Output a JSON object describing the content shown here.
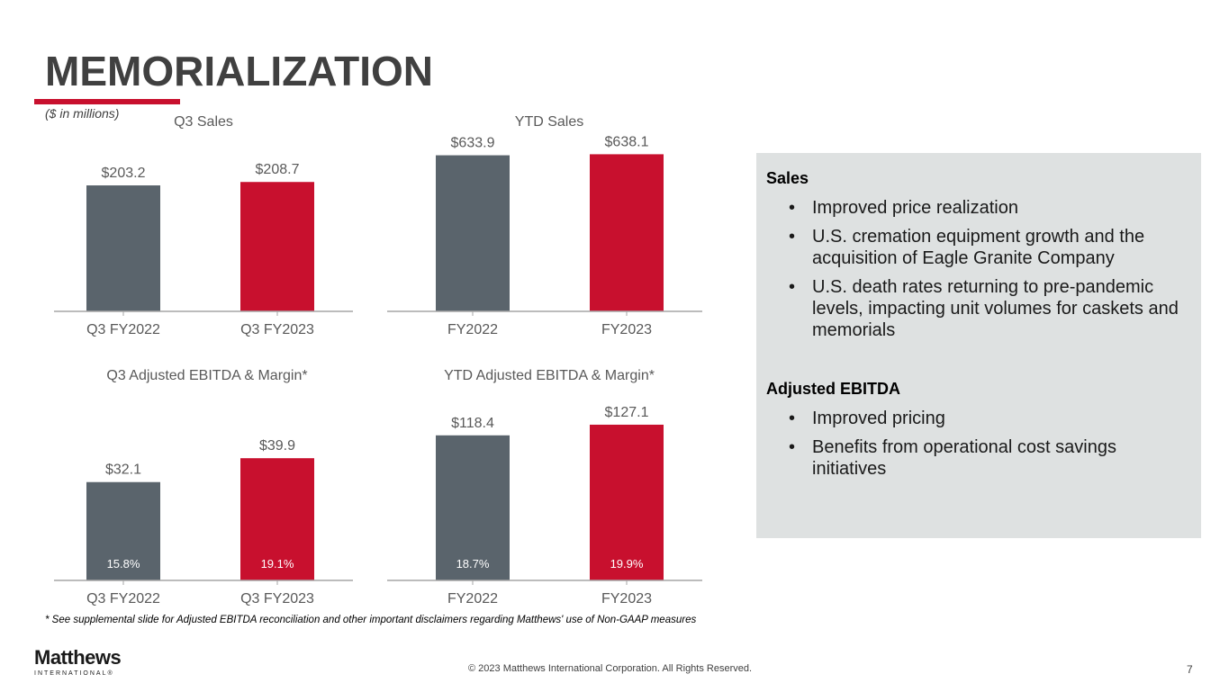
{
  "slide": {
    "title": "MEMORIALIZATION",
    "units": "($ in millions)",
    "accent_color": "#c8102e",
    "prior_color": "#5a646c",
    "footnote": "* See supplemental slide for Adjusted EBITDA reconciliation and other important disclaimers regarding Matthews' use of Non-GAAP measures",
    "logo": {
      "name": "Matthews",
      "sub": "INTERNATIONAL®"
    },
    "copyright": "© 2023 Matthews International Corporation. All Rights Reserved.",
    "page_number": "7"
  },
  "panel": {
    "sections": [
      {
        "heading": "Sales",
        "bullets": [
          "Improved price realization",
          "U.S. cremation equipment growth and the acquisition of Eagle Granite Company",
          "U.S. death rates returning to pre-pandemic levels, impacting unit volumes for caskets and memorials"
        ]
      },
      {
        "heading": "Adjusted EBITDA",
        "bullets": [
          "Improved pricing",
          "Benefits from operational cost savings initiatives"
        ]
      }
    ]
  },
  "chart_data": [
    {
      "type": "bar",
      "title": "Q3 Sales",
      "categories": [
        "Q3 FY2022",
        "Q3 FY2023"
      ],
      "values": [
        203.2,
        208.7
      ],
      "labels": [
        "$203.2",
        "$208.7"
      ],
      "ylim": [
        0,
        270
      ],
      "xlabel": "",
      "ylabel": "",
      "grid": false
    },
    {
      "type": "bar",
      "title": "YTD Sales",
      "categories": [
        "FY2022",
        "FY2023"
      ],
      "values": [
        633.9,
        638.1
      ],
      "labels": [
        "$633.9",
        "$638.1"
      ],
      "ylim": [
        0,
        720
      ],
      "xlabel": "",
      "ylabel": "",
      "grid": false
    },
    {
      "type": "bar",
      "title": "Q3 Adjusted EBITDA & Margin*",
      "categories": [
        "Q3 FY2022",
        "Q3 FY2023"
      ],
      "values": [
        32.1,
        39.9
      ],
      "labels": [
        "$32.1",
        "$39.9"
      ],
      "margins": [
        "15.8%",
        "19.1%"
      ],
      "ylim": [
        0,
        52
      ],
      "xlabel": "",
      "ylabel": "",
      "grid": false
    },
    {
      "type": "bar",
      "title": "YTD Adjusted EBITDA & Margin*",
      "categories": [
        "FY2022",
        "FY2023"
      ],
      "values": [
        118.4,
        127.1
      ],
      "labels": [
        "$118.4",
        "$127.1"
      ],
      "margins": [
        "18.7%",
        "19.9%"
      ],
      "ylim": [
        0,
        130
      ],
      "xlabel": "",
      "ylabel": "",
      "grid": false
    }
  ]
}
